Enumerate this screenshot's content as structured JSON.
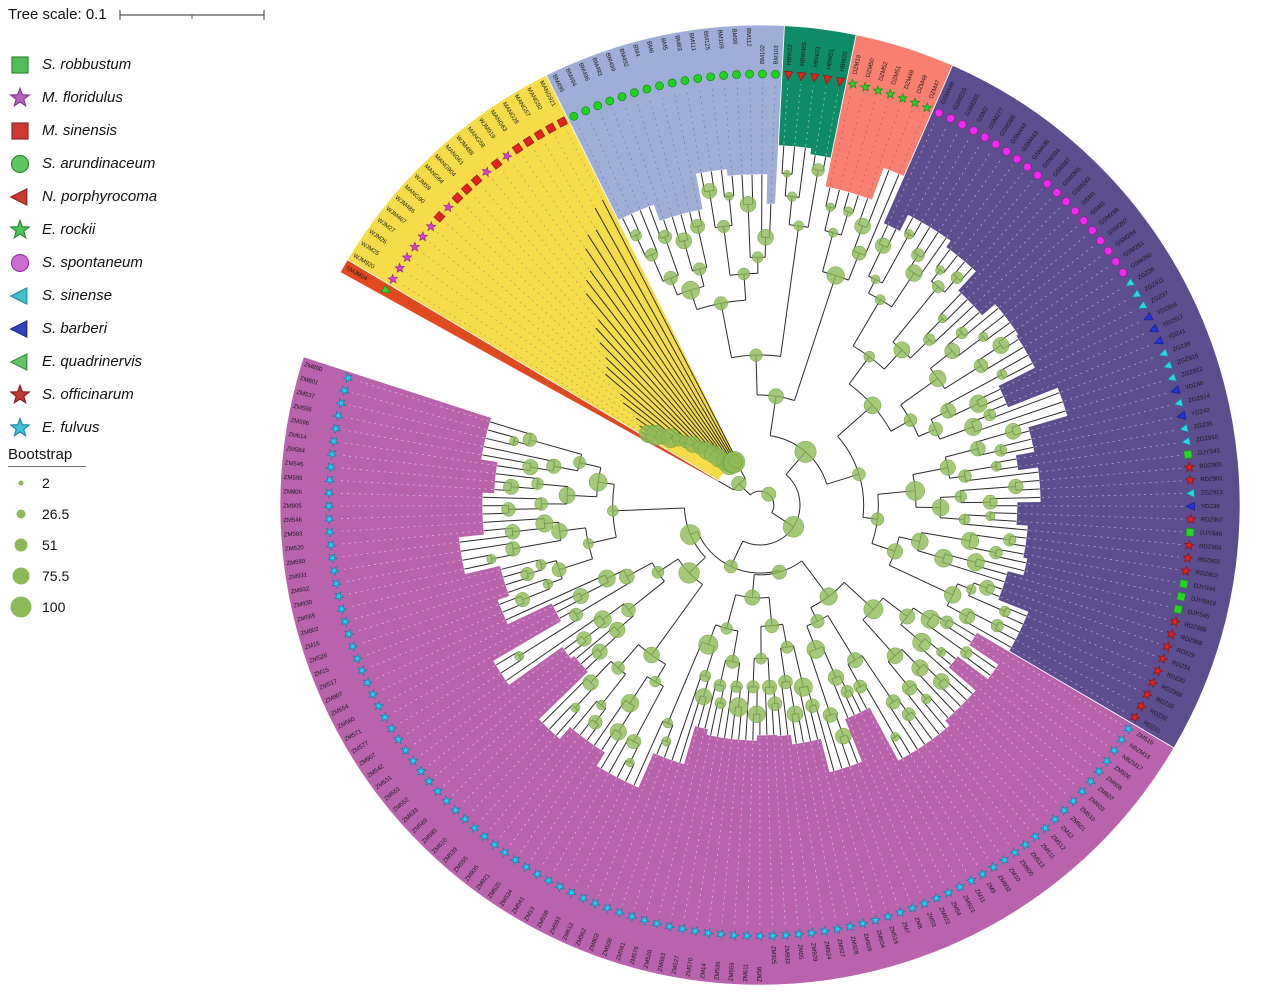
{
  "tree_scale": {
    "label": "Tree scale:",
    "value": "0.1"
  },
  "species_legend": [
    {
      "name": "S. robbustum",
      "symbol": "square",
      "color": "#52BD57",
      "stroke": "#2F8A36"
    },
    {
      "name": "M. floridulus",
      "symbol": "star",
      "color": "#BC5FC4",
      "stroke": "#7E3A8E"
    },
    {
      "name": "M. sinensis",
      "symbol": "square",
      "color": "#CC3A33",
      "stroke": "#8E2420"
    },
    {
      "name": "S. arundinaceum",
      "symbol": "circle",
      "color": "#5FC55F",
      "stroke": "#2F8A36"
    },
    {
      "name": "N. porphyrocoma",
      "symbol": "triangle-left",
      "color": "#CC3A33",
      "stroke": "#8E2420"
    },
    {
      "name": "E. rockii",
      "symbol": "star",
      "color": "#4EC454",
      "stroke": "#2F8A36"
    },
    {
      "name": "S. spontaneum",
      "symbol": "circle",
      "color": "#CC6CD1",
      "stroke": "#9436A0"
    },
    {
      "name": "S. sinense",
      "symbol": "triangle-left",
      "color": "#3BC3CE",
      "stroke": "#1E8C96"
    },
    {
      "name": "S. barberi",
      "symbol": "triangle-left",
      "color": "#3040C0",
      "stroke": "#1D2880"
    },
    {
      "name": "E. quadrinervis",
      "symbol": "triangle-left",
      "color": "#63C463",
      "stroke": "#3A8F3A"
    },
    {
      "name": "S. officinarum",
      "symbol": "star",
      "color": "#C23931",
      "stroke": "#84201A"
    },
    {
      "name": "E. fulvus",
      "symbol": "star",
      "color": "#3FC3DE",
      "stroke": "#1F86A8"
    }
  ],
  "bootstrap_legend": {
    "title": "Bootstrap",
    "values": [
      "2",
      "26.5",
      "51",
      "75.5",
      "100"
    ],
    "color": "#8CBA56"
  },
  "tip_symbols": {
    "robbustum": {
      "shape": "square",
      "fill": "#2BD22B",
      "stroke": "#1A8C1A"
    },
    "floridulus": {
      "shape": "star",
      "fill": "#E23BE2",
      "stroke": "#8E2B8E"
    },
    "sinensis": {
      "shape": "square",
      "fill": "#E3231B",
      "stroke": "#8E1510"
    },
    "arundinaceum": {
      "shape": "circle",
      "fill": "#1ED41E",
      "stroke": "#128812"
    },
    "porphyrocoma": {
      "shape": "triangle-left",
      "fill": "#E3231B",
      "stroke": "#8E1510"
    },
    "rockii": {
      "shape": "star",
      "fill": "#2BD22B",
      "stroke": "#1A8C1A"
    },
    "spontaneum": {
      "shape": "circle",
      "fill": "#EE2BEE",
      "stroke": "#971897"
    },
    "sinense": {
      "shape": "triangle-left",
      "fill": "#2BD7E8",
      "stroke": "#1A8796"
    },
    "barberi": {
      "shape": "triangle-left",
      "fill": "#2633E0",
      "stroke": "#141D85"
    },
    "quadrinervis": {
      "shape": "triangle-left",
      "fill": "#2BD22B",
      "stroke": "#1A8C1A"
    },
    "officinarum": {
      "shape": "star",
      "fill": "#E8231B",
      "stroke": "#8E1510"
    },
    "fulvus": {
      "shape": "star",
      "fill": "#24CBF2",
      "stroke": "#147F9C"
    }
  },
  "tree": {
    "branch_color": "#2b2b2b",
    "bootstrap_color": "#8CBA56",
    "groups": [
      {
        "id": "outgroup-smjm",
        "wedge_color": "#E2491F",
        "symbol": "quadrinervis",
        "labels": [
          "SMJM24"
        ]
      },
      {
        "id": "miscanthus",
        "wedge_color": "#F6DC49",
        "tips": [
          [
            "WJM920",
            "floridulus"
          ],
          [
            "WJM25",
            "floridulus"
          ],
          [
            "WJM26",
            "floridulus"
          ],
          [
            "WJM27",
            "floridulus"
          ],
          [
            "WJM467",
            "floridulus"
          ],
          [
            "WJM486",
            "floridulus"
          ],
          [
            "MANG90",
            "sinensis"
          ],
          [
            "WJM59",
            "floridulus"
          ],
          [
            "MANG64",
            "sinensis"
          ],
          [
            "MANG904",
            "sinensis"
          ],
          [
            "MANG61",
            "sinensis"
          ],
          [
            "WJM488",
            "floridulus"
          ],
          [
            "MANG58",
            "sinensis"
          ],
          [
            "WJM919",
            "floridulus"
          ],
          [
            "MANG63",
            "sinensis"
          ],
          [
            "MANG28",
            "sinensis"
          ],
          [
            "MANG57",
            "sinensis"
          ],
          [
            "MANG92",
            "sinensis"
          ],
          [
            "MANG921",
            "sinensis"
          ]
        ]
      },
      {
        "id": "bm",
        "wedge_color": "#9FAED6",
        "symbol": "arundinaceum",
        "labels": [
          "BM495",
          "BM494",
          "BM496",
          "BM493",
          "BM499",
          "BM492",
          "BM4",
          "BM6",
          "BM5",
          "BM83",
          "BM111",
          "BM125",
          "BM109",
          "BM98",
          "BM112",
          "BM102",
          "BM103"
        ]
      },
      {
        "id": "hbw",
        "wedge_color": "#0E8C67",
        "symbol": "porphyrocoma",
        "labels": [
          "HBW22",
          "HBW485",
          "HBW23",
          "HBW21",
          "HBW20"
        ]
      },
      {
        "id": "dzm",
        "wedge_color": "#F98070",
        "symbol": "rockii",
        "labels": [
          "DZM19",
          "DZM50",
          "DZM52",
          "DZM51",
          "DZM49",
          "DZM48",
          "DZM47"
        ]
      },
      {
        "id": "gsm",
        "wedge_color": "#5C4D8E",
        "tips": [
          [
            "GSM448",
            "spontaneum"
          ],
          [
            "GSM210",
            "spontaneum"
          ],
          [
            "GSM265",
            "spontaneum"
          ],
          [
            "GSM2",
            "spontaneum"
          ],
          [
            "GSM277",
            "spontaneum"
          ],
          [
            "GSM393",
            "spontaneum"
          ],
          [
            "GSM444",
            "spontaneum"
          ],
          [
            "GSM443",
            "spontaneum"
          ],
          [
            "GSM436",
            "spontaneum"
          ],
          [
            "GSM394",
            "spontaneum"
          ],
          [
            "GSM367",
            "spontaneum"
          ],
          [
            "GSM365",
            "spontaneum"
          ],
          [
            "GSM243",
            "spontaneum"
          ],
          [
            "GSM1",
            "spontaneum"
          ],
          [
            "GSM3",
            "spontaneum"
          ],
          [
            "GSM298",
            "spontaneum"
          ],
          [
            "GSM297",
            "spontaneum"
          ],
          [
            "GSM244",
            "spontaneum"
          ],
          [
            "GSM261",
            "spontaneum"
          ],
          [
            "GSM260",
            "spontaneum"
          ],
          [
            "ZGZ36",
            "sinense"
          ],
          [
            "ZGZ911",
            "sinense"
          ],
          [
            "ZGZ37",
            "sinense"
          ],
          [
            "YDZ916",
            "barberi"
          ],
          [
            "YDZ917",
            "barberi"
          ],
          [
            "YDZ41",
            "barberi"
          ],
          [
            "ZGZ38",
            "sinense"
          ],
          [
            "ZGZ915",
            "sinense"
          ],
          [
            "ZGZ912",
            "sinense"
          ],
          [
            "YDZ40",
            "barberi"
          ],
          [
            "ZGZ914",
            "sinense"
          ],
          [
            "YDZ42",
            "barberi"
          ],
          [
            "ZGZ35",
            "sinense"
          ],
          [
            "ZGZ910",
            "sinense"
          ],
          [
            "DJYS43",
            "robbustum"
          ],
          [
            "RDZ905",
            "officinarum"
          ],
          [
            "RDZ901",
            "officinarum"
          ],
          [
            "ZGZ913",
            "sinense"
          ],
          [
            "YDZ39",
            "barberi"
          ],
          [
            "RDZ907",
            "officinarum"
          ],
          [
            "DJYS46",
            "robbustum"
          ],
          [
            "RDZ904",
            "officinarum"
          ],
          [
            "RDZ903",
            "officinarum"
          ],
          [
            "RDZ902",
            "officinarum"
          ],
          [
            "DJYS44",
            "robbustum"
          ],
          [
            "DJYS918",
            "robbustum"
          ],
          [
            "DJYS45",
            "robbustum"
          ],
          [
            "RDZ909",
            "officinarum"
          ],
          [
            "RDZ908",
            "officinarum"
          ],
          [
            "RDZ29",
            "officinarum"
          ],
          [
            "RDZ34",
            "officinarum"
          ],
          [
            "RDZ30",
            "officinarum"
          ],
          [
            "RDZ906",
            "officinarum"
          ],
          [
            "RDZ33",
            "officinarum"
          ],
          [
            "RDZ32",
            "officinarum"
          ],
          [
            "RDZ31",
            "officinarum"
          ]
        ]
      },
      {
        "id": "zm",
        "wedge_color": "#B963AC",
        "symbol": "fulvus",
        "labels": [
          "ZM515",
          "NBZM18",
          "NBZM17",
          "ZM506",
          "ZM608",
          "ZM607",
          "ZM603",
          "ZM510",
          "ZM501",
          "ZM12",
          "ZM512",
          "ZM511",
          "ZM513",
          "ZM600",
          "ZM10",
          "ZM602",
          "ZM9",
          "ZM11",
          "ZM923",
          "ZM54",
          "ZM922",
          "ZM53",
          "ZM8",
          "ZM7",
          "ZM516",
          "ZM604",
          "ZM926",
          "ZM928",
          "ZM927",
          "ZM924",
          "ZM929",
          "ZM55",
          "ZM933",
          "ZM925",
          "ZM56",
          "ZM611",
          "ZM559",
          "ZM536",
          "ZM14",
          "ZM570",
          "ZM527",
          "ZM563",
          "ZM528",
          "ZM576",
          "ZM561",
          "ZM508",
          "ZM803",
          "ZM562",
          "ZM612",
          "ZM593",
          "ZM558",
          "ZM13",
          "ZM541",
          "ZM534",
          "ZM525",
          "ZM921",
          "ZM935",
          "ZM555",
          "ZM539",
          "ZM610",
          "ZM585",
          "ZM569",
          "ZM633",
          "ZM552",
          "ZM551",
          "ZM531",
          "ZM542",
          "ZM907",
          "ZM577",
          "ZM571",
          "ZM560",
          "ZM554",
          "ZM807",
          "ZM517",
          "ZM15",
          "ZM526",
          "ZM16",
          "ZM802",
          "ZM565",
          "ZM930",
          "ZM932",
          "ZM931",
          "ZM580",
          "ZM520",
          "ZM583",
          "ZM546",
          "ZM805",
          "ZM806",
          "ZM595",
          "ZM545",
          "ZM584",
          "ZM614",
          "ZM596",
          "ZM556",
          "ZM537",
          "ZM801",
          "ZM800"
        ]
      }
    ]
  }
}
